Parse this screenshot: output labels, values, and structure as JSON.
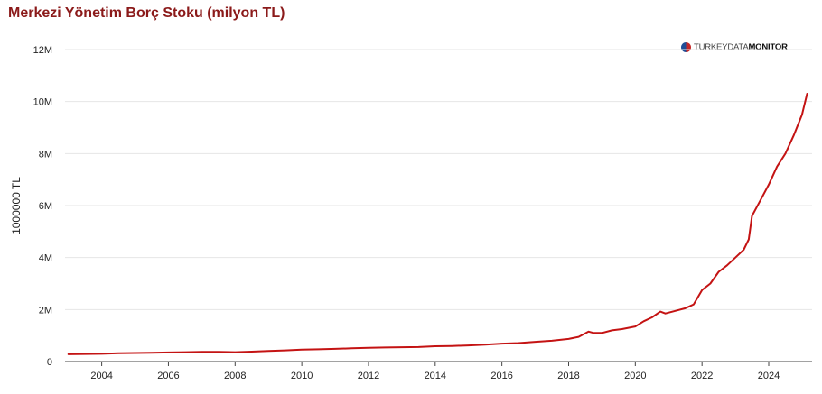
{
  "brand": {
    "light_text": "TURKEYDATA",
    "bold_text": "MONITOR"
  },
  "colors": {
    "title": "#8b1a1a",
    "line": "#c41313",
    "grid": "#e6e6e6",
    "axis": "#444444"
  },
  "chart_data": {
    "type": "line",
    "title": "Merkezi Yönetim Borç Stoku (milyon TL)",
    "xlabel": "",
    "ylabel": "1000000 TL",
    "xlim": [
      2002.9,
      2025.3
    ],
    "ylim": [
      0,
      12000000
    ],
    "x_ticks": [
      2004,
      2006,
      2008,
      2010,
      2012,
      2014,
      2016,
      2018,
      2020,
      2022,
      2024
    ],
    "x_tick_labels": [
      "2004",
      "2006",
      "2008",
      "2010",
      "2012",
      "2014",
      "2016",
      "2018",
      "2020",
      "2022",
      "2024"
    ],
    "y_ticks": [
      0,
      2000000,
      4000000,
      6000000,
      8000000,
      10000000,
      12000000
    ],
    "y_tick_labels": [
      "0",
      "2M",
      "4M",
      "6M",
      "8M",
      "10M",
      "12M"
    ],
    "grid": "horizontal",
    "series": [
      {
        "color": "#c41313",
        "x": [
          2003.0,
          2003.5,
          2004.0,
          2004.5,
          2005.0,
          2005.5,
          2006.0,
          2006.5,
          2007.0,
          2007.5,
          2008.0,
          2008.5,
          2009.0,
          2009.5,
          2010.0,
          2010.5,
          2011.0,
          2011.5,
          2012.0,
          2012.5,
          2013.0,
          2013.5,
          2014.0,
          2014.5,
          2015.0,
          2015.5,
          2016.0,
          2016.5,
          2017.0,
          2017.5,
          2018.0,
          2018.3,
          2018.6,
          2018.75,
          2019.0,
          2019.3,
          2019.6,
          2020.0,
          2020.25,
          2020.5,
          2020.75,
          2020.9,
          2021.2,
          2021.5,
          2021.75,
          2022.0,
          2022.25,
          2022.5,
          2022.75,
          2023.0,
          2023.25,
          2023.4,
          2023.5,
          2023.75,
          2024.0,
          2024.25,
          2024.5,
          2024.75,
          2025.0,
          2025.15
        ],
        "values": [
          280000,
          290000,
          300000,
          320000,
          330000,
          340000,
          350000,
          360000,
          370000,
          370000,
          360000,
          380000,
          410000,
          430000,
          460000,
          470000,
          490000,
          510000,
          530000,
          540000,
          550000,
          560000,
          590000,
          600000,
          620000,
          650000,
          690000,
          710000,
          760000,
          800000,
          870000,
          950000,
          1150000,
          1100000,
          1100000,
          1200000,
          1250000,
          1350000,
          1550000,
          1700000,
          1920000,
          1850000,
          1950000,
          2050000,
          2200000,
          2750000,
          3000000,
          3450000,
          3700000,
          4000000,
          4300000,
          4700000,
          5600000,
          6200000,
          6800000,
          7500000,
          8000000,
          8700000,
          9500000,
          10300000
        ]
      }
    ]
  }
}
